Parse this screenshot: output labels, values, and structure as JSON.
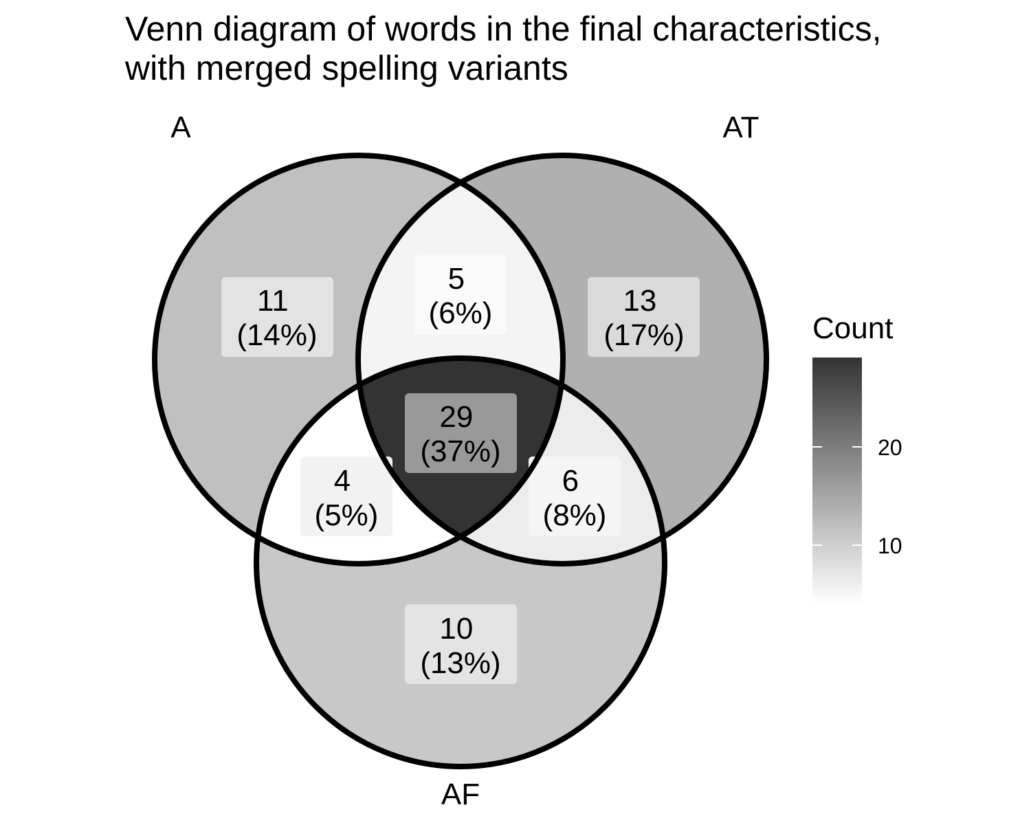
{
  "title": {
    "line1": "Venn diagram of words in the final characteristics,",
    "line2": "with merged spelling variants"
  },
  "sets": [
    {
      "id": "A",
      "label": "A"
    },
    {
      "id": "AT",
      "label": "AT"
    },
    {
      "id": "AF",
      "label": "AF"
    }
  ],
  "regions": [
    {
      "key": "A_only",
      "count": "11",
      "percent": "(14%)",
      "fill": "#c0c0c0",
      "box": "#e3e3e3"
    },
    {
      "key": "AT_only",
      "count": "13",
      "percent": "(17%)",
      "fill": "#b0b0b0",
      "box": "#dadada"
    },
    {
      "key": "AF_only",
      "count": "10",
      "percent": "(13%)",
      "fill": "#c8c8c8",
      "box": "#e4e4e4"
    },
    {
      "key": "A_AT",
      "count": "5",
      "percent": "(6%)",
      "fill": "#f4f4f4",
      "box": "#fafafa"
    },
    {
      "key": "A_AF",
      "count": "4",
      "percent": "(5%)",
      "fill": "#ffffff",
      "box": "#f2f2f2"
    },
    {
      "key": "AT_AF",
      "count": "6",
      "percent": "(8%)",
      "fill": "#ececec",
      "box": "#f5f5f5"
    },
    {
      "key": "A_AT_AF",
      "count": "29",
      "percent": "(37%)",
      "fill": "#333333",
      "box": "#999999"
    }
  ],
  "legend": {
    "title": "Count",
    "ticks": [
      "20",
      "10"
    ],
    "colors": {
      "high": "#333333",
      "low": "#ffffff"
    }
  },
  "colors": {
    "outline": "#000000"
  }
}
